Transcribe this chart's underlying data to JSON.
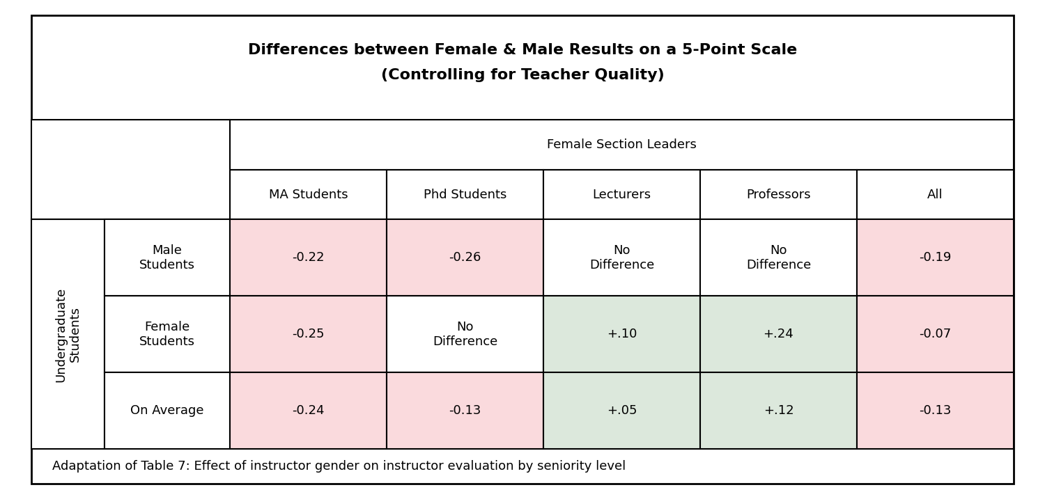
{
  "title_line1": "Differences between Female & Male Results on a 5-Point Scale",
  "title_line2": "(Controlling for Teacher Quality)",
  "col_group_header": "Female Section Leaders",
  "col_headers": [
    "MA Students",
    "Phd Students",
    "Lecturers",
    "Professors",
    "All"
  ],
  "row_group_header": "Undergraduate\nStudents",
  "row_headers": [
    "Male\nStudents",
    "Female\nStudents",
    "On Average"
  ],
  "cell_data": [
    [
      "-0.22",
      "-0.26",
      "No\nDifference",
      "No\nDifference",
      "-0.19"
    ],
    [
      "-0.25",
      "No\nDifference",
      "+.10",
      "+.24",
      "-0.07"
    ],
    [
      "-0.24",
      "-0.13",
      "+.05",
      "+.12",
      "-0.13"
    ]
  ],
  "cell_colors": [
    [
      "#fadadd",
      "#fadadd",
      "#ffffff",
      "#ffffff",
      "#fadadd"
    ],
    [
      "#fadadd",
      "#ffffff",
      "#dce8dc",
      "#dce8dc",
      "#fadadd"
    ],
    [
      "#fadadd",
      "#fadadd",
      "#dce8dc",
      "#dce8dc",
      "#fadadd"
    ]
  ],
  "caption": "Adaptation of Table 7: Effect of instructor gender on instructor evaluation by seniority level",
  "background_color": "#ffffff",
  "border_color": "#000000",
  "title_fontsize": 16,
  "header_fontsize": 13,
  "cell_fontsize": 13,
  "caption_fontsize": 13
}
